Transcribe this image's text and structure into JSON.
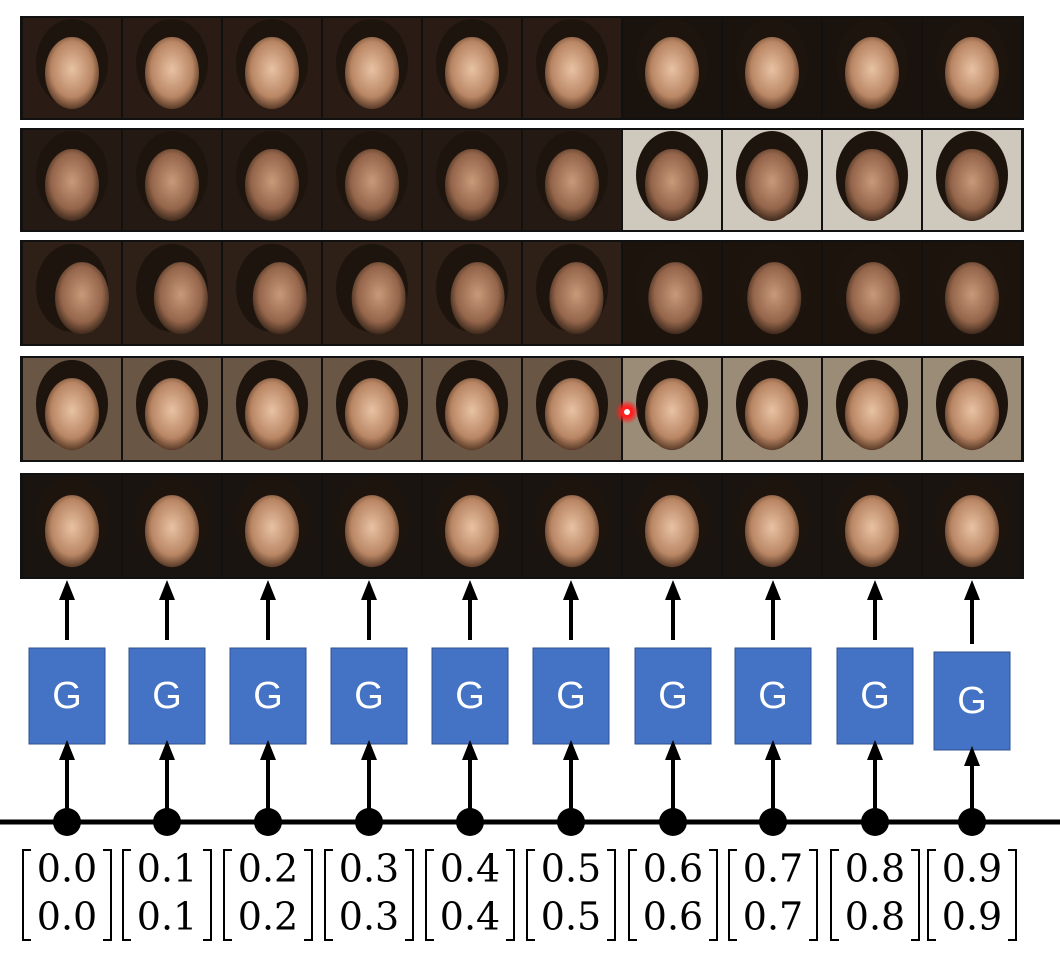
{
  "generators": [
    {
      "label": "G",
      "vector": [
        "0.0",
        "0.0"
      ]
    },
    {
      "label": "G",
      "vector": [
        "0.1",
        "0.1"
      ]
    },
    {
      "label": "G",
      "vector": [
        "0.2",
        "0.2"
      ]
    },
    {
      "label": "G",
      "vector": [
        "0.3",
        "0.3"
      ]
    },
    {
      "label": "G",
      "vector": [
        "0.4",
        "0.4"
      ]
    },
    {
      "label": "G",
      "vector": [
        "0.5",
        "0.5"
      ]
    },
    {
      "label": "G",
      "vector": [
        "0.6",
        "0.6"
      ]
    },
    {
      "label": "G",
      "vector": [
        "0.7",
        "0.7"
      ]
    },
    {
      "label": "G",
      "vector": [
        "0.8",
        "0.8"
      ]
    },
    {
      "label": "G",
      "vector": [
        "0.9",
        "0.9"
      ]
    }
  ]
}
